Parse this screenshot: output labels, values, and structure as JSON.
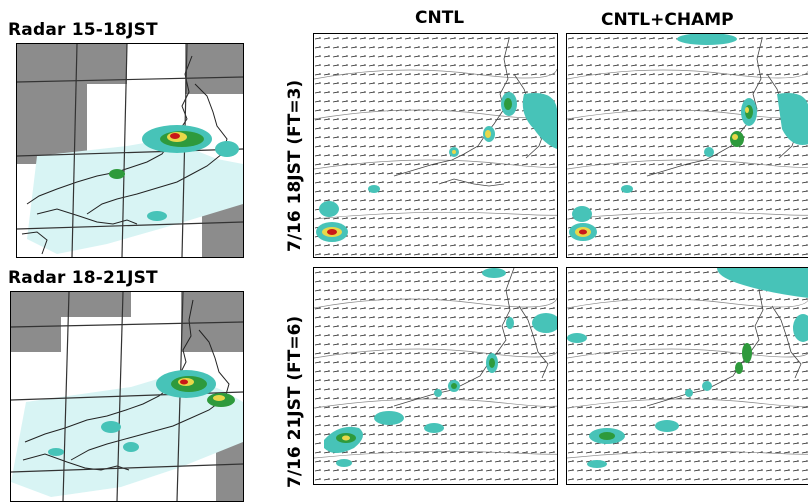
{
  "radar": {
    "top_title": "Radar 15-18JST",
    "bottom_title": "Radar 18-21JST"
  },
  "columns": {
    "left": "CNTL",
    "right": "CNTL+CHAMP"
  },
  "rows": {
    "top": "7/16  18JST  (FT=3)",
    "bottom": "7/16  21JST  (FT=6)"
  },
  "colors": {
    "no_data": "#8c8c8c",
    "precip_light": "#d8f4f4",
    "precip_low": "#47c3b8",
    "precip_mid": "#2e9a3c",
    "precip_high": "#e8d84a",
    "precip_max": "#c81818"
  }
}
